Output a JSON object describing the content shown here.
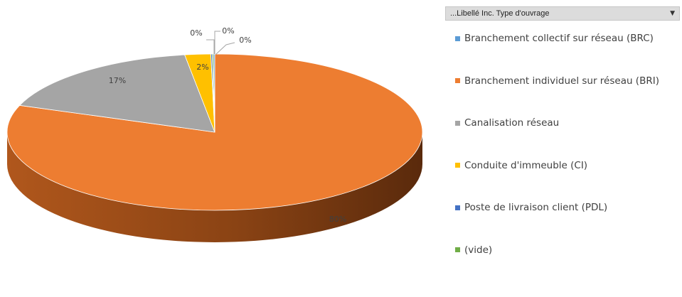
{
  "field_button": {
    "label": "...Libellé Inc. Type d'ouvrage",
    "icon": "dropdown-arrow-icon"
  },
  "chart_data": {
    "type": "pie",
    "style": "3d",
    "legend_position": "right",
    "categories": [
      "Branchement collectif sur réseau (BRC)",
      "Branchement individuel sur réseau (BRI)",
      "Canalisation réseau",
      "Conduite d'immeuble (CI)",
      "Poste de livraison client (PDL)",
      "(vide)"
    ],
    "values": [
      0.1,
      80,
      17,
      2,
      0.1,
      0.1
    ],
    "data_labels": [
      "0%",
      "80%",
      "17%",
      "2%",
      "0%",
      "0%"
    ],
    "colors": [
      "#5b9bd5",
      "#ed7d31",
      "#a5a5a5",
      "#ffc000",
      "#4472c4",
      "#70ad47"
    ],
    "dark_colors": [
      "#3d6f9c",
      "#a04f17",
      "#737373",
      "#b38600",
      "#2d4f8c",
      "#4d7a30"
    ]
  }
}
